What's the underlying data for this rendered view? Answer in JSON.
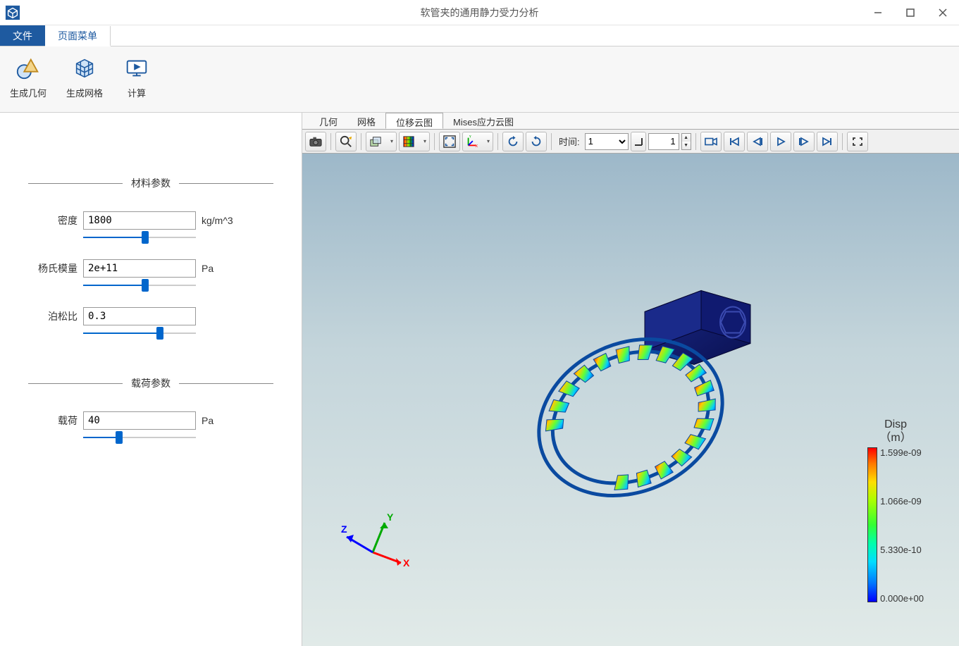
{
  "window": {
    "title": "软管夹的通用静力受力分析"
  },
  "menu": {
    "file": "文件",
    "page_menu": "页面菜单"
  },
  "ribbon": {
    "gen_geometry": "生成几何",
    "gen_mesh": "生成网格",
    "compute": "计算"
  },
  "panel": {
    "material_title": "材料参数",
    "load_title": "载荷参数",
    "density": {
      "label": "密度",
      "value": "1800",
      "unit": "kg/m^3",
      "slider_pct": 55
    },
    "youngs": {
      "label": "杨氏模量",
      "value": "2e+11",
      "unit": "Pa",
      "slider_pct": 55
    },
    "poisson": {
      "label": "泊松比",
      "value": "0.3",
      "unit": "",
      "slider_pct": 68
    },
    "load": {
      "label": "载荷",
      "value": "40",
      "unit": "Pa",
      "slider_pct": 32
    }
  },
  "view_tabs": {
    "geometry": "几何",
    "mesh": "网格",
    "disp_cloud": "位移云图",
    "mises_cloud": "Mises应力云图",
    "active": "disp_cloud"
  },
  "view_toolbar": {
    "time_label": "时间:",
    "time_value": "1",
    "frame_value": "1"
  },
  "colorbar": {
    "title_line1": "Disp",
    "title_line2": "（m）",
    "ticks": [
      "1.599e-09",
      "1.066e-09",
      "5.330e-10",
      "0.000e+00"
    ],
    "gradient_stops": [
      "#ff0000",
      "#ff7700",
      "#ffdd00",
      "#aaff00",
      "#33ff33",
      "#00ffaa",
      "#00ddff",
      "#0077ff",
      "#0000ff"
    ]
  },
  "triad": {
    "x": "X",
    "y": "Y",
    "z": "Z",
    "colors": {
      "x": "#ff0000",
      "y": "#00aa00",
      "z": "#0000ff"
    }
  },
  "viewport": {
    "bg_gradient": [
      "#9db8c9",
      "#c4d5db",
      "#e1eae8"
    ]
  }
}
